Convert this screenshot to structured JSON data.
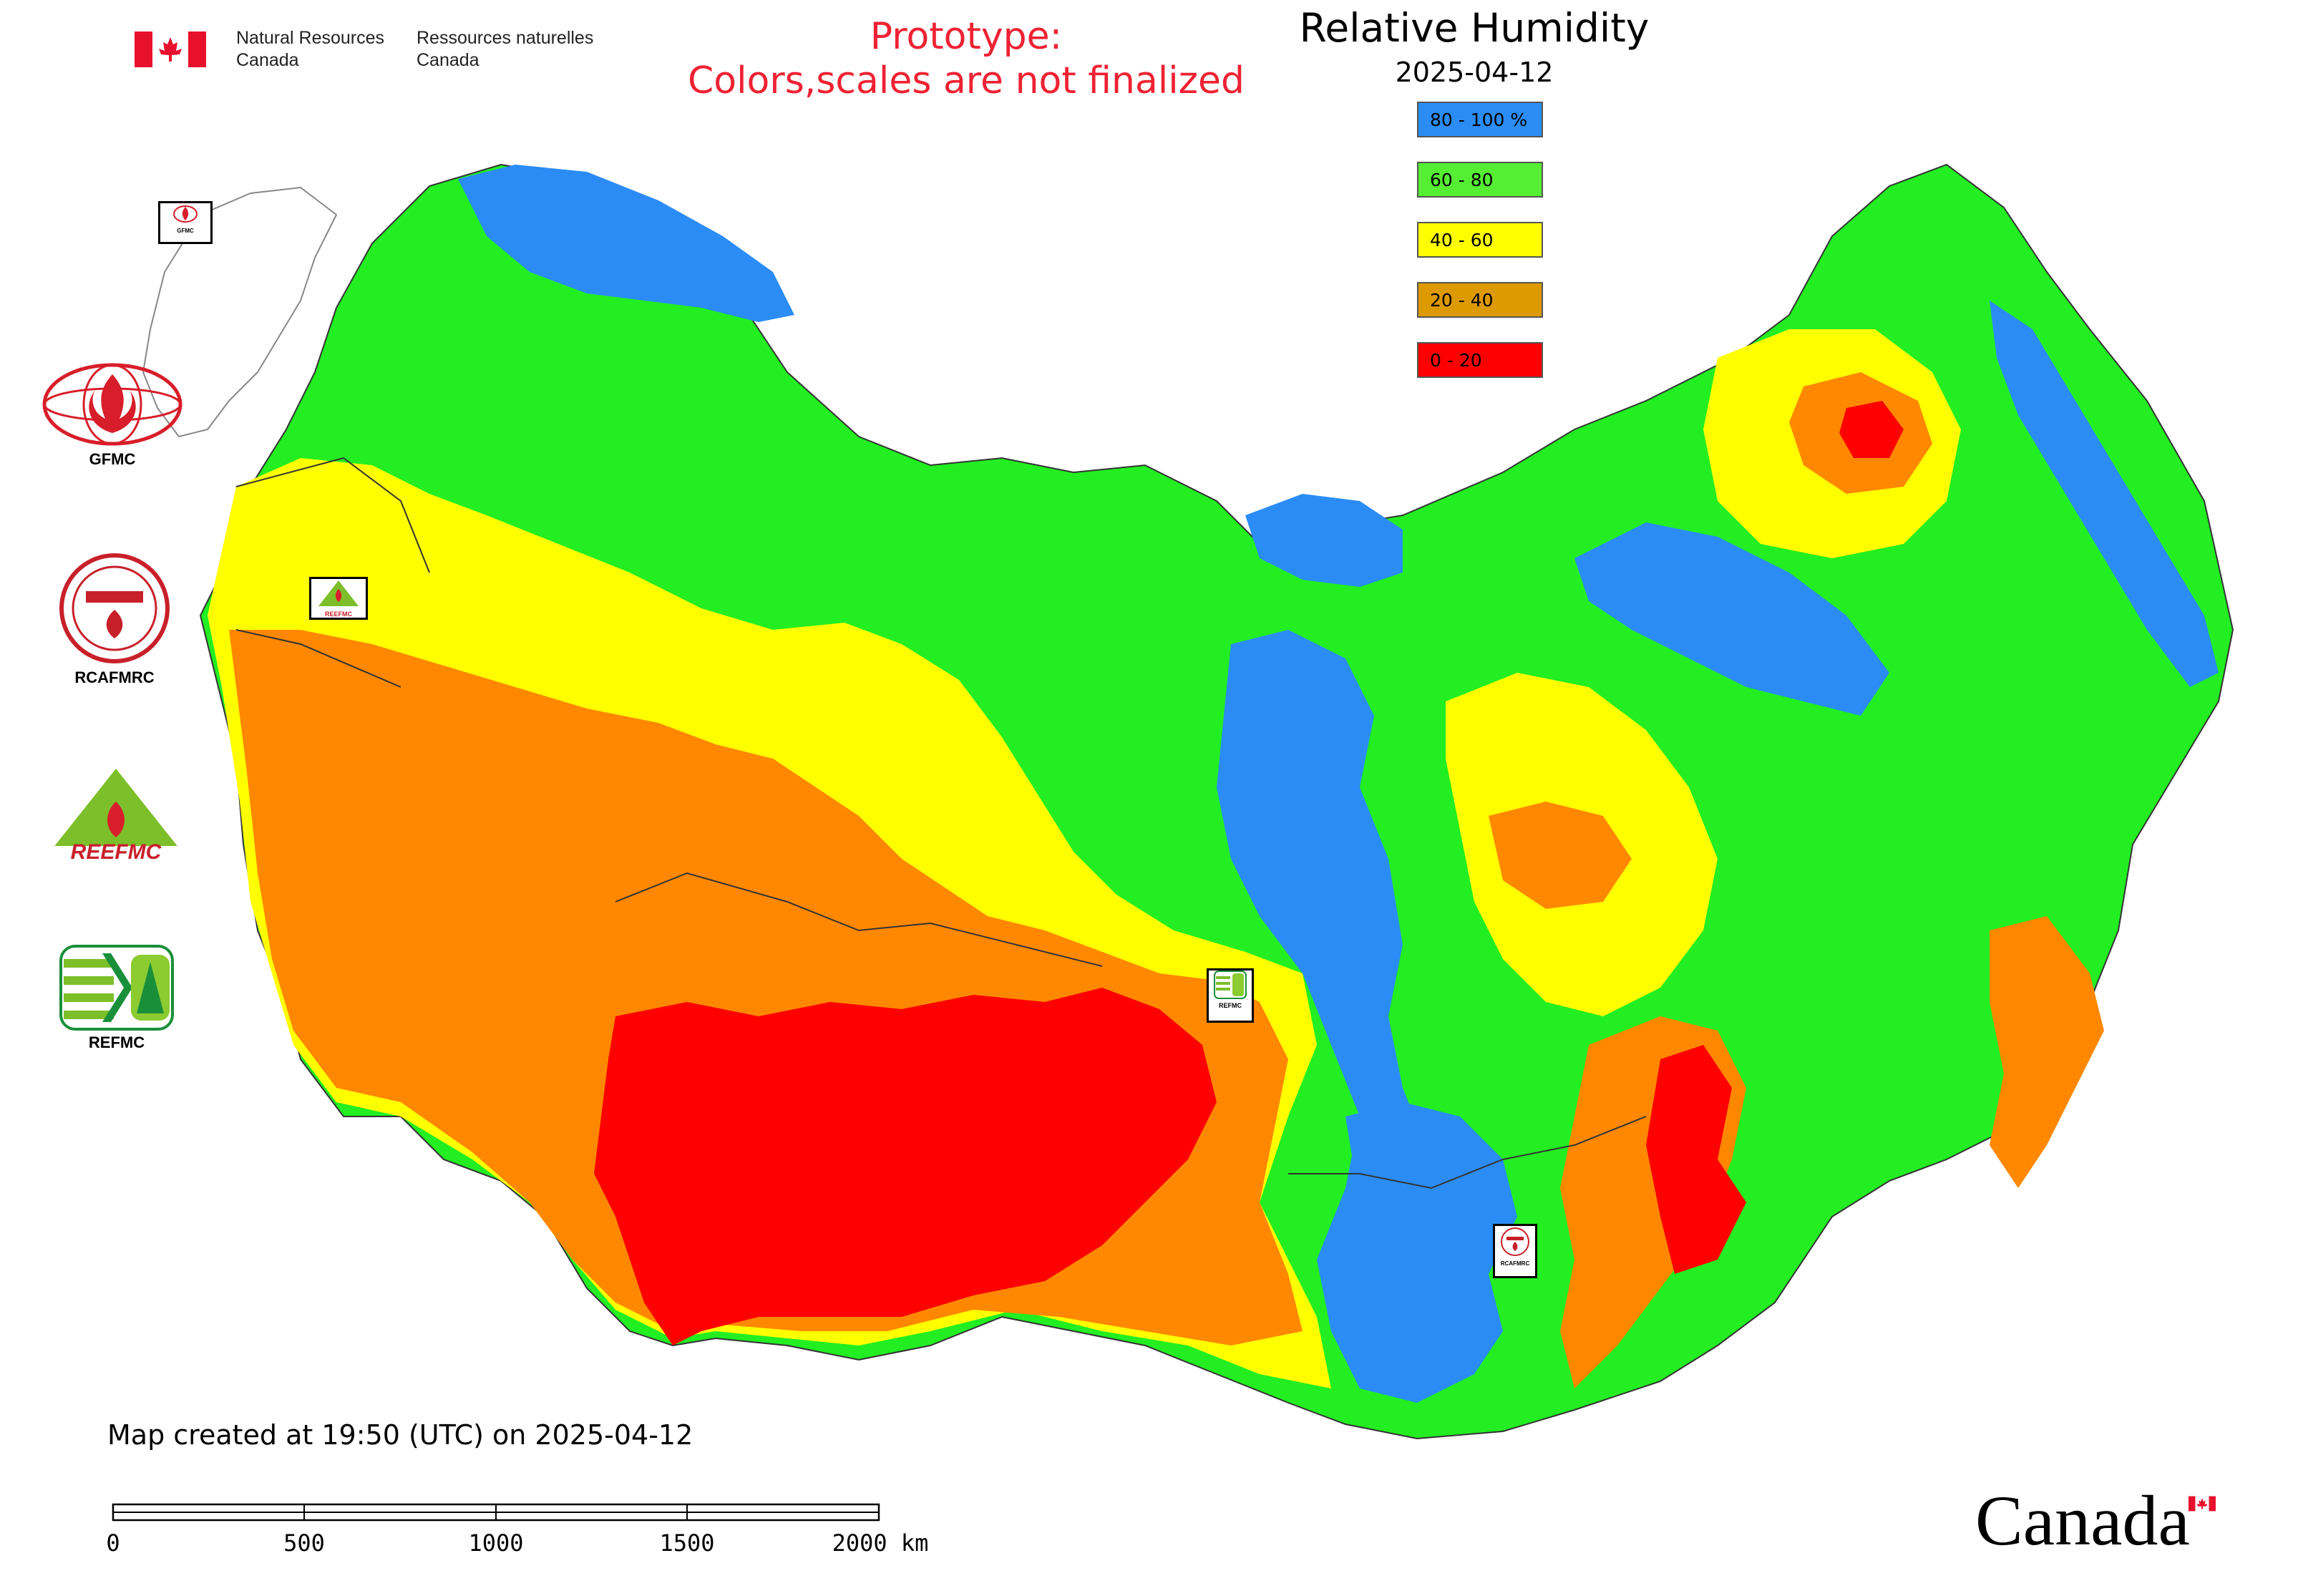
{
  "header": {
    "agency_en_1": "Natural Resources",
    "agency_en_2": "Canada",
    "agency_fr_1": "Ressources naturelles",
    "agency_fr_2": "Canada",
    "notice_1": "Prototype:",
    "notice_2": "Colors,scales are not finalized",
    "title": "Relative Humidity",
    "date": "2025-04-12"
  },
  "legend": {
    "classes": [
      {
        "label": "80 - 100 %",
        "color": "#2b8cf5"
      },
      {
        "label": "60 - 80",
        "color": "#55ee33"
      },
      {
        "label": "40 - 60",
        "color": "#ffff00"
      },
      {
        "label": "20 - 40",
        "color": "#dd9900"
      },
      {
        "label": "0 - 20",
        "color": "#ff0000"
      }
    ]
  },
  "colors": {
    "blue": "#2b8cf5",
    "green": "#22ee22",
    "yellow": "#ffff00",
    "orange": "#ff8800",
    "red": "#ff0000",
    "border": "#333333"
  },
  "logos": {
    "gfmc": "GFMC",
    "rcafmrc": "RCAFMRC",
    "reefmc": "REEFMC",
    "refmc": "REFMC",
    "map_marker_gfmc": "GFMC",
    "map_marker_reefmc": "REEFMC",
    "map_marker_refmc": "REFMC",
    "map_marker_rcafmrc": "RCAFMRC"
  },
  "footer": {
    "created": "Map created at 19:50 (UTC) on 2025-04-12",
    "scale_ticks": [
      "0",
      "500",
      "1000",
      "1500",
      "2000 km"
    ],
    "wordmark": "Canada"
  }
}
